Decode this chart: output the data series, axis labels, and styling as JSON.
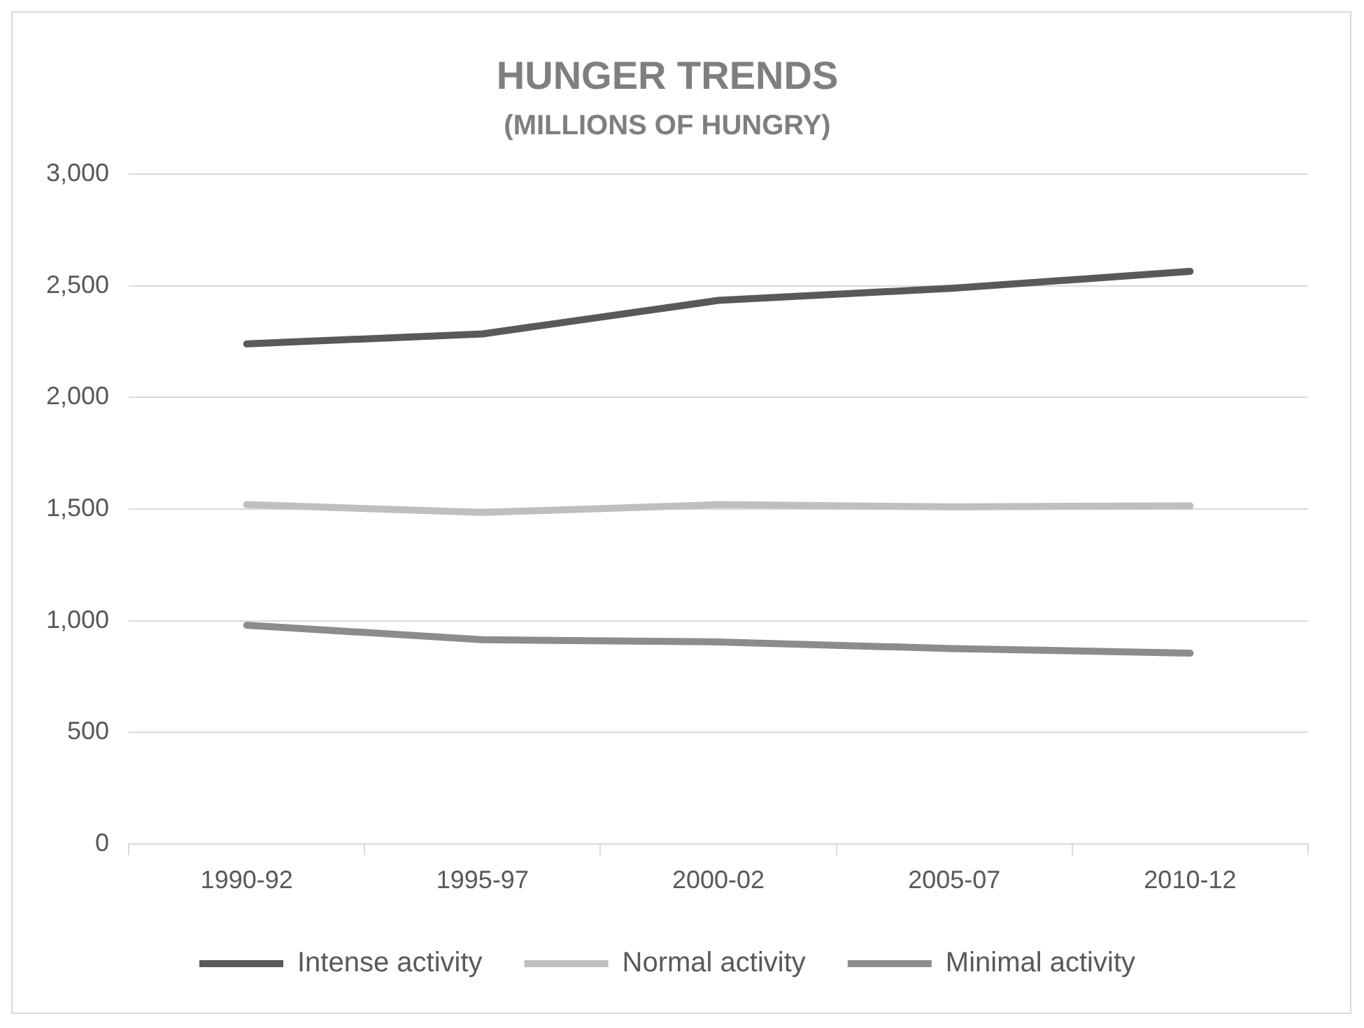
{
  "chart_data": {
    "type": "line",
    "title": "HUNGER TRENDS",
    "subtitle": "(MILLIONS OF HUNGRY)",
    "categories": [
      "1990-92",
      "1995-97",
      "2000-02",
      "2005-07",
      "2010-12"
    ],
    "series": [
      {
        "name": "Intense activity",
        "color": "#595959",
        "values": [
          2240,
          2285,
          2435,
          2490,
          2565
        ]
      },
      {
        "name": "Normal activity",
        "color": "#bfbfbf",
        "values": [
          1520,
          1485,
          1520,
          1510,
          1515
        ]
      },
      {
        "name": "Minimal activity",
        "color": "#8c8c8c",
        "values": [
          980,
          915,
          905,
          875,
          855
        ]
      }
    ],
    "ylim": [
      0,
      3000
    ],
    "yticks": [
      0,
      500,
      {
        "value": 1000,
        "label": "1,000"
      },
      {
        "value": 1500,
        "label": "1,500"
      },
      {
        "value": 2000,
        "label": "2,000"
      },
      {
        "value": 2500,
        "label": "2,500"
      },
      {
        "value": 3000,
        "label": "3,000"
      }
    ],
    "grid": "y",
    "legend": "bottom",
    "marker": "none",
    "line_style": "solid"
  }
}
